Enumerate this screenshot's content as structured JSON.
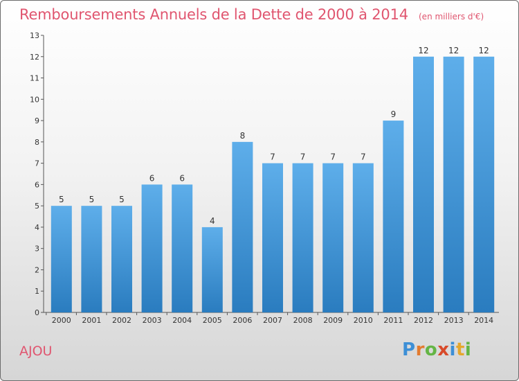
{
  "chart_data": {
    "type": "bar",
    "title": "Remboursements Annuels de la Dette de 2000 à 2014",
    "subtitle": "(en milliers d'€)",
    "categories": [
      "2000",
      "2001",
      "2002",
      "2003",
      "2004",
      "2005",
      "2006",
      "2007",
      "2008",
      "2009",
      "2010",
      "2011",
      "2012",
      "2013",
      "2014"
    ],
    "values": [
      5,
      5,
      5,
      6,
      6,
      4,
      8,
      7,
      7,
      7,
      7,
      9,
      12,
      12,
      12
    ],
    "yticks": [
      "0",
      "1",
      "2",
      "3",
      "4",
      "5",
      "6",
      "7",
      "8",
      "9",
      "10",
      "11",
      "12",
      "13"
    ],
    "ylim": [
      0,
      13
    ],
    "xlabel": "",
    "ylabel": "",
    "grid": false,
    "colors": {
      "bar_light": "#5eaeea",
      "bar_dark": "#2a7cbf",
      "title": "#e0556f"
    }
  },
  "footer": {
    "commune": "AJOU",
    "logo": [
      "P",
      "r",
      "o",
      "x",
      "i",
      "t",
      "i"
    ]
  },
  "logo_colors": [
    "#3d8fd6",
    "#e37b2f",
    "#64b545",
    "#d84a2a",
    "#3d8fd6",
    "#e5a72c",
    "#64b545"
  ]
}
